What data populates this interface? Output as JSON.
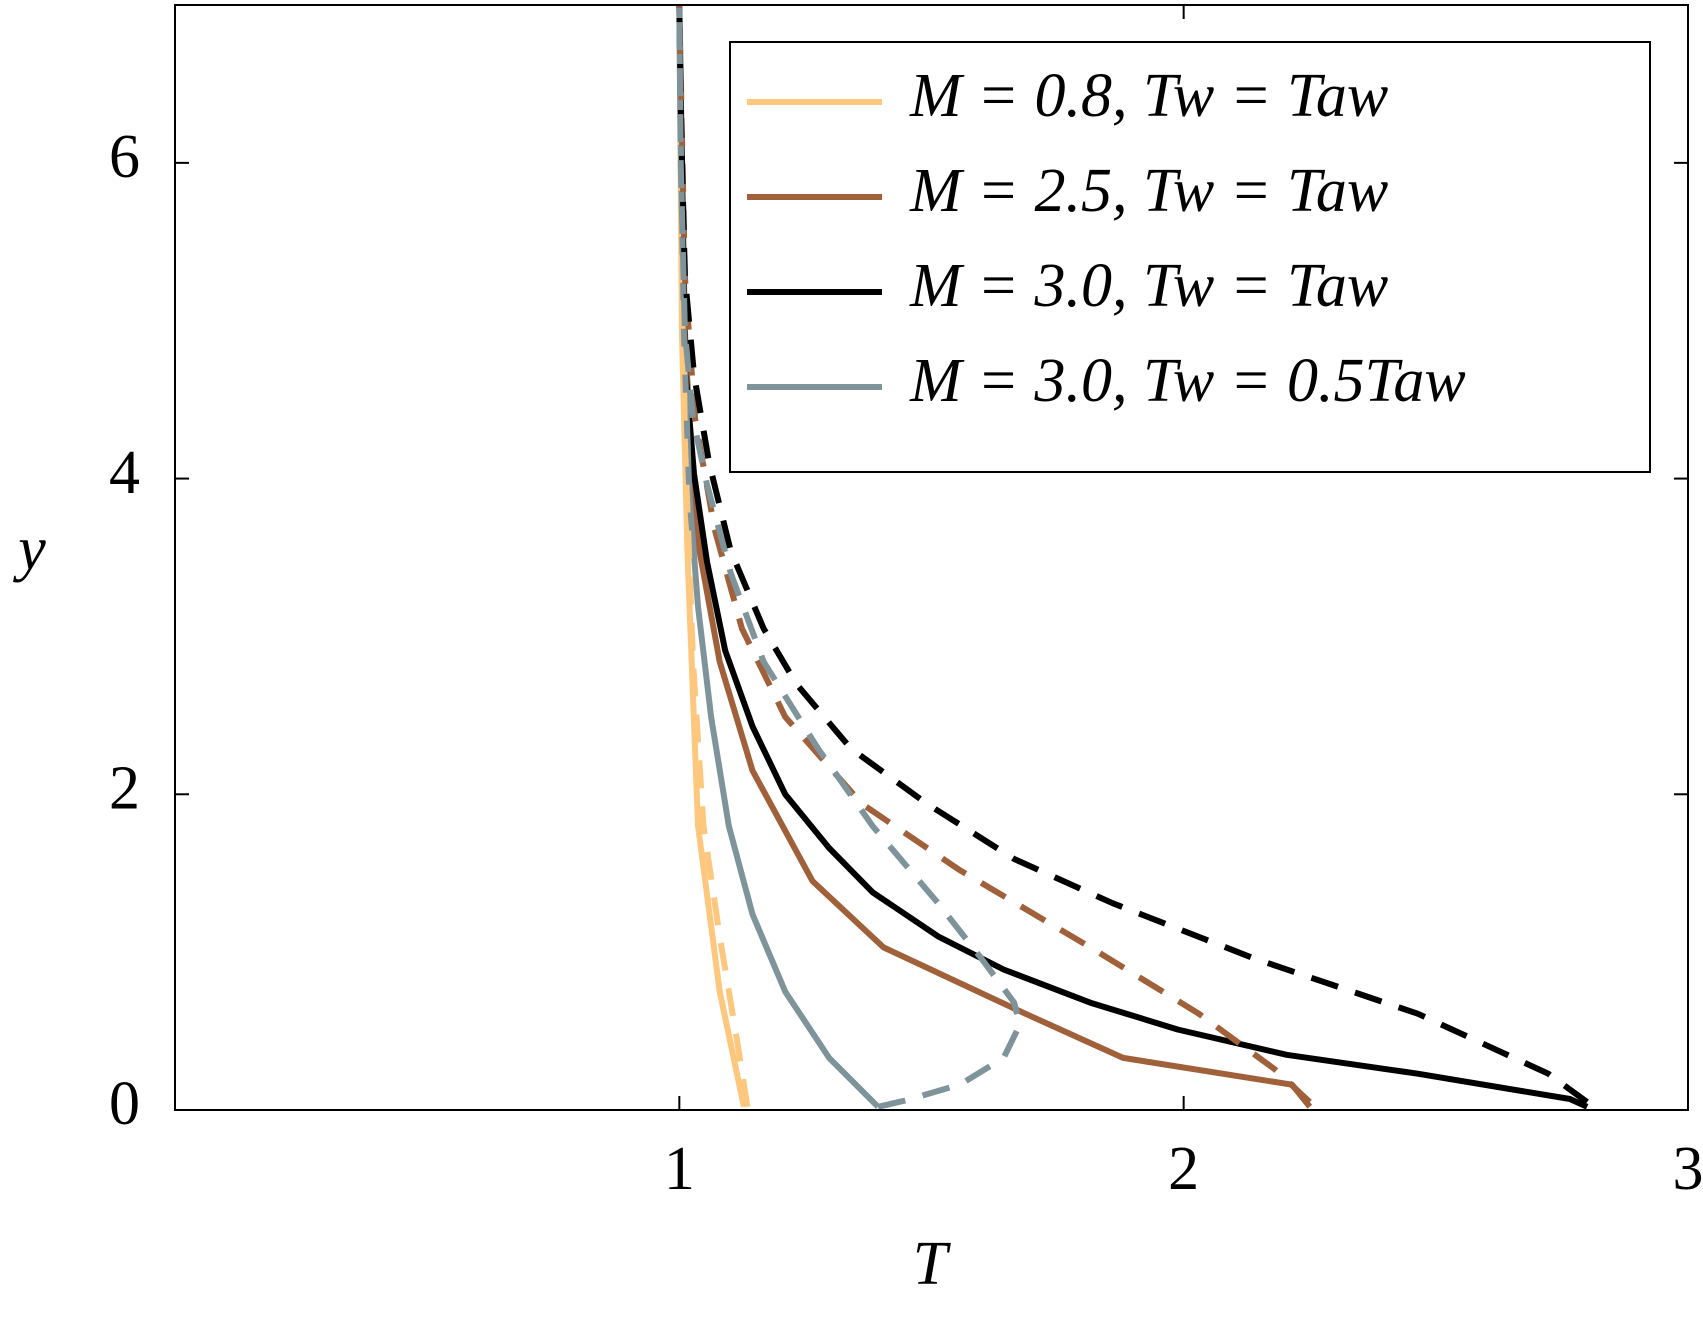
{
  "chart_data": {
    "type": "line",
    "x_label": "T",
    "y_label": "y",
    "xlim": [
      0,
      3
    ],
    "xticks": [
      1,
      2,
      3
    ],
    "ylim": [
      0,
      7
    ],
    "yticks": [
      0,
      2,
      4,
      6
    ],
    "grid": false,
    "legend": "upper right",
    "series": [
      {
        "name": "M = 0.8, Tw = Taw",
        "color": "#fdc77e",
        "dashed": false,
        "x": [
          1.128,
          1.08,
          1.037,
          1.016,
          1.005,
          1.0
        ],
        "values": [
          0.02,
          0.75,
          1.8,
          3.54,
          4.93,
          7
        ]
      },
      {
        "name": "M = 2.5, Tw = Taw",
        "color": "#a0613a",
        "dashed": false,
        "x": [
          2.25,
          2.215,
          1.88,
          1.686,
          1.405,
          1.264,
          1.145,
          1.08,
          1.04,
          1.022,
          1.011,
          1.0
        ],
        "values": [
          0.02,
          0.16,
          0.33,
          0.61,
          1.03,
          1.45,
          2.15,
          2.84,
          3.54,
          4.24,
          4.93,
          7
        ]
      },
      {
        "name": "M = 3.0, Tw = Taw",
        "color": "#000000",
        "dashed": false,
        "x": [
          2.8,
          2.766,
          2.464,
          2.204,
          1.988,
          1.815,
          1.643,
          1.513,
          1.383,
          1.297,
          1.21,
          1.145,
          1.091,
          1.055,
          1.029,
          1.011,
          1.0
        ],
        "values": [
          0.02,
          0.07,
          0.23,
          0.35,
          0.51,
          0.68,
          0.89,
          1.1,
          1.38,
          1.66,
          2.0,
          2.43,
          2.91,
          3.47,
          4.03,
          4.72,
          7
        ]
      },
      {
        "name": "M = 3.0, Tw = 0.5Taw",
        "color": "#7f939b",
        "dashed": false,
        "x": [
          1.394,
          1.297,
          1.21,
          1.145,
          1.098,
          1.063,
          1.037,
          1.02,
          1.009,
          1.002,
          1.0
        ],
        "values": [
          0.02,
          0.33,
          0.75,
          1.24,
          1.8,
          2.49,
          3.19,
          3.89,
          4.93,
          6.33,
          7
        ]
      },
      {
        "color": "#fdc77e",
        "dashed": true,
        "x": [
          1.135,
          1.113,
          1.08,
          1.048,
          1.027,
          1.011,
          1.003
        ],
        "values": [
          0.02,
          0.47,
          1.1,
          1.8,
          2.84,
          4.24,
          6.2
        ]
      },
      {
        "color": "#a0613a",
        "dashed": true,
        "x": [
          2.25,
          2.18,
          2.03,
          1.815,
          1.556,
          1.362,
          1.21,
          1.124,
          1.07,
          1.031,
          1.011,
          1.0
        ],
        "values": [
          0.05,
          0.26,
          0.61,
          1.03,
          1.52,
          1.94,
          2.49,
          3.05,
          3.68,
          4.38,
          5.28,
          7
        ]
      },
      {
        "color": "#000000",
        "dashed": true,
        "x": [
          2.8,
          2.723,
          2.464,
          2.14,
          1.859,
          1.664,
          1.491,
          1.34,
          1.232,
          1.167,
          1.102,
          1.059,
          1.029,
          1.011,
          1.003,
          1.0
        ],
        "values": [
          0.05,
          0.23,
          0.61,
          0.96,
          1.31,
          1.59,
          1.94,
          2.29,
          2.7,
          3.05,
          3.54,
          4.1,
          4.66,
          5.28,
          6.33,
          7
        ]
      },
      {
        "color": "#7f939b",
        "dashed": true,
        "x": [
          1.394,
          1.448,
          1.556,
          1.643,
          1.675,
          1.664,
          1.599,
          1.513,
          1.383,
          1.275,
          1.167,
          1.102,
          1.055,
          1.027,
          1.011,
          1.003,
          1.0
        ],
        "values": [
          0.02,
          0.06,
          0.16,
          0.33,
          0.54,
          0.68,
          0.96,
          1.31,
          1.8,
          2.29,
          2.84,
          3.4,
          3.96,
          4.38,
          4.93,
          5.98,
          7
        ]
      }
    ]
  }
}
